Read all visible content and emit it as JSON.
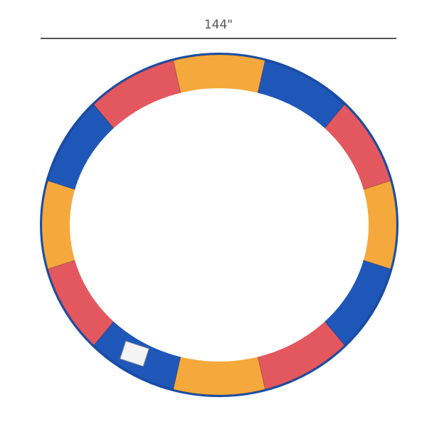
{
  "dimension": {
    "label": "144\""
  }
}
